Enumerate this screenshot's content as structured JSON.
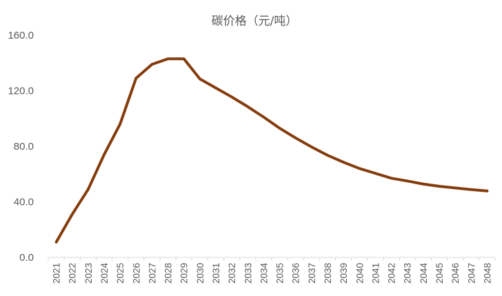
{
  "chart_data": {
    "type": "line",
    "title": "碳价格（元/吨）",
    "xlabel": "",
    "ylabel": "",
    "ylim": [
      0,
      160
    ],
    "yticks": [
      "0.0",
      "40.0",
      "80.0",
      "120.0",
      "160.0"
    ],
    "grid": false,
    "legend": "none",
    "x": [
      "2021",
      "2022",
      "2023",
      "2024",
      "2025",
      "2026",
      "2027",
      "2028",
      "2029",
      "2030",
      "2031",
      "2032",
      "2033",
      "2034",
      "2035",
      "2036",
      "2037",
      "2038",
      "2039",
      "2040",
      "2041",
      "2042",
      "2043",
      "2044",
      "2045",
      "2046",
      "2047",
      "2048"
    ],
    "series": [
      {
        "values": [
          11.0,
          31.0,
          49.0,
          74.0,
          96.0,
          129.0,
          139.0,
          143.0,
          143.0,
          128.5,
          122.0,
          115.5,
          108.5,
          101.0,
          93.0,
          86.0,
          79.5,
          73.5,
          68.5,
          64.0,
          60.5,
          57.0,
          55.0,
          52.8,
          51.2,
          50.0,
          48.8,
          47.8
        ],
        "color": "#843C0C"
      }
    ]
  }
}
